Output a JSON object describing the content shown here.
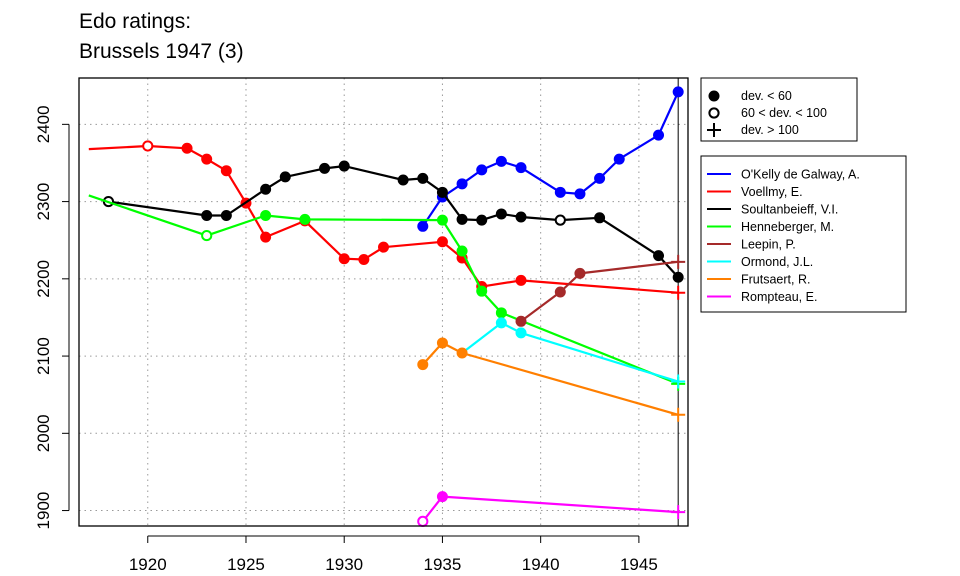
{
  "title_line1": "Edo ratings:",
  "title_line2": "Brussels 1947 (3)",
  "chart_data": {
    "type": "line",
    "title": "Edo ratings: Brussels 1947 (3)",
    "xlim": [
      1916.5,
      1947.5
    ],
    "ylim": [
      1880,
      2460
    ],
    "x_ticks": [
      1920,
      1925,
      1930,
      1935,
      1940,
      1945
    ],
    "y_ticks": [
      1900,
      2000,
      2100,
      2200,
      2300,
      2400
    ],
    "grid": true,
    "event_year": 1947,
    "marker_legend": [
      {
        "marker": "filled",
        "label": "dev. < 60"
      },
      {
        "marker": "open",
        "label": "60 < dev. < 100"
      },
      {
        "marker": "plus",
        "label": "dev. > 100"
      }
    ],
    "series": [
      {
        "name": "O'Kelly de Galway, A.",
        "color": "#0000ff",
        "points": [
          [
            1934,
            2268,
            "filled"
          ],
          [
            1935,
            2306,
            "filled"
          ],
          [
            1936,
            2323,
            "filled"
          ],
          [
            1937,
            2341,
            "filled"
          ],
          [
            1938,
            2352,
            "filled"
          ],
          [
            1939,
            2344,
            "filled"
          ],
          [
            1941,
            2312,
            "filled"
          ],
          [
            1942,
            2310,
            "filled"
          ],
          [
            1943,
            2330,
            "filled"
          ],
          [
            1944,
            2355,
            "filled"
          ],
          [
            1946,
            2386,
            "filled"
          ],
          [
            1947,
            2442,
            "filled"
          ]
        ]
      },
      {
        "name": "Voellmy, E.",
        "color": "#ff0000",
        "points": [
          [
            1917,
            2368,
            "none"
          ],
          [
            1920,
            2372,
            "open"
          ],
          [
            1922,
            2369,
            "filled"
          ],
          [
            1923,
            2355,
            "filled"
          ],
          [
            1924,
            2340,
            "filled"
          ],
          [
            1925,
            2298,
            "filled"
          ],
          [
            1926,
            2254,
            "filled"
          ],
          [
            1928,
            2275,
            "filled"
          ],
          [
            1930,
            2226,
            "filled"
          ],
          [
            1931,
            2225,
            "filled"
          ],
          [
            1932,
            2241,
            "filled"
          ],
          [
            1935,
            2248,
            "filled"
          ],
          [
            1936,
            2227,
            "filled"
          ],
          [
            1937,
            2190,
            "filled"
          ],
          [
            1939,
            2198,
            "filled"
          ],
          [
            1947,
            2182,
            "plus"
          ]
        ]
      },
      {
        "name": "Soultanbeieff, V.I.",
        "color": "#000000",
        "points": [
          [
            1918,
            2300,
            "open"
          ],
          [
            1923,
            2282,
            "filled"
          ],
          [
            1924,
            2282,
            "filled"
          ],
          [
            1926,
            2316,
            "filled"
          ],
          [
            1927,
            2332,
            "filled"
          ],
          [
            1929,
            2343,
            "filled"
          ],
          [
            1930,
            2346,
            "filled"
          ],
          [
            1933,
            2328,
            "filled"
          ],
          [
            1934,
            2330,
            "filled"
          ],
          [
            1935,
            2312,
            "filled"
          ],
          [
            1936,
            2277,
            "filled"
          ],
          [
            1937,
            2276,
            "filled"
          ],
          [
            1938,
            2284,
            "filled"
          ],
          [
            1939,
            2280,
            "filled"
          ],
          [
            1941,
            2276,
            "open"
          ],
          [
            1943,
            2279,
            "filled"
          ],
          [
            1946,
            2230,
            "filled"
          ],
          [
            1947,
            2202,
            "filled"
          ]
        ]
      },
      {
        "name": "Henneberger, M.",
        "color": "#00ff00",
        "points": [
          [
            1917,
            2308,
            "none"
          ],
          [
            1923,
            2256,
            "open"
          ],
          [
            1926,
            2282,
            "filled"
          ],
          [
            1928,
            2277,
            "filled"
          ],
          [
            1935,
            2276,
            "filled"
          ],
          [
            1936,
            2236,
            "filled"
          ],
          [
            1937,
            2184,
            "filled"
          ],
          [
            1938,
            2156,
            "filled"
          ],
          [
            1947,
            2064,
            "plus"
          ]
        ]
      },
      {
        "name": "Leepin, P.",
        "color": "#a52a2a",
        "points": [
          [
            1939,
            2145,
            "filled"
          ],
          [
            1941,
            2183,
            "filled"
          ],
          [
            1942,
            2207,
            "filled"
          ],
          [
            1947,
            2222,
            "plus"
          ]
        ]
      },
      {
        "name": "Ormond, J.L.",
        "color": "#00ffff",
        "points": [
          [
            1936,
            2104,
            "none"
          ],
          [
            1938,
            2143,
            "filled"
          ],
          [
            1939,
            2130,
            "filled"
          ],
          [
            1947,
            2067,
            "plus"
          ]
        ]
      },
      {
        "name": "Frutsaert, R.",
        "color": "#ff7f00",
        "points": [
          [
            1934,
            2089,
            "filled"
          ],
          [
            1935,
            2117,
            "filled"
          ],
          [
            1936,
            2104,
            "filled"
          ],
          [
            1947,
            2024,
            "plus"
          ]
        ]
      },
      {
        "name": "Rompteau, E.",
        "color": "#ff00ff",
        "points": [
          [
            1934,
            1886,
            "open"
          ],
          [
            1935,
            1918,
            "filled"
          ],
          [
            1947,
            1898,
            "plus"
          ]
        ]
      }
    ]
  }
}
